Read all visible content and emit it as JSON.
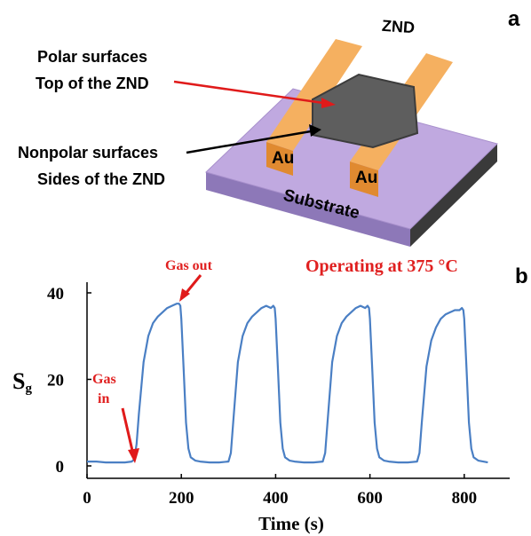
{
  "panel_a": {
    "letter": "a",
    "znd_label": "ZND",
    "polar_line1": "Polar surfaces",
    "polar_line2": "Top of the ZND",
    "nonpolar_line1": "Nonpolar surfaces",
    "nonpolar_line2": "Sides of the ZND",
    "electrode_left": "Au",
    "electrode_right": "Au",
    "substrate": "Substrate",
    "colors": {
      "substrate_top": "#b9a2dc",
      "substrate_side": "#7d67a8",
      "gold": "#f0a14a",
      "gold_dark": "#c97b28",
      "znd": "#5a5a5a",
      "arrow_red": "#e01a1a"
    }
  },
  "panel_b": {
    "letter": "b",
    "annotation_operating": "Operating at 375 °C",
    "annotation_gas_out": "Gas out",
    "annotation_gas_in_1": "Gas",
    "annotation_gas_in_2": "in",
    "ylabel_main": "S",
    "ylabel_sub": "g",
    "xlabel": "Time (s)",
    "xticks": [
      "0",
      "200",
      "400",
      "600",
      "800"
    ],
    "yticks": [
      "0",
      "20",
      "40"
    ],
    "line_color": "#4a7fc4"
  },
  "chart_data": {
    "type": "line",
    "xlabel": "Time (s)",
    "ylabel": "Sg",
    "xlim": [
      0,
      870
    ],
    "ylim": [
      0,
      40
    ],
    "series": [
      {
        "x": [
          0,
          20,
          40,
          60,
          80,
          95,
          100,
          105,
          110,
          120,
          130,
          140,
          150,
          160,
          170,
          180,
          190,
          195,
          198,
          200,
          205,
          210,
          215,
          220,
          230,
          240,
          260,
          280,
          300,
          305,
          310,
          320,
          330,
          340,
          350,
          360,
          370,
          380,
          390,
          395,
          398,
          400,
          405,
          410,
          415,
          420,
          430,
          440,
          460,
          480,
          500,
          505,
          510,
          520,
          530,
          540,
          550,
          560,
          570,
          580,
          590,
          595,
          598,
          600,
          605,
          610,
          615,
          620,
          630,
          640,
          660,
          680,
          700,
          705,
          710,
          720,
          730,
          740,
          750,
          760,
          770,
          780,
          790,
          795,
          798,
          800,
          805,
          810,
          815,
          820,
          830,
          840,
          850
        ],
        "y": [
          1,
          1,
          0.8,
          0.8,
          0.8,
          1,
          1.5,
          5,
          12,
          24,
          30,
          33,
          34.5,
          35.5,
          36.5,
          37,
          37.5,
          37.5,
          37,
          34,
          22,
          10,
          4,
          2,
          1.2,
          1,
          0.8,
          0.8,
          1,
          3,
          10,
          24,
          30,
          33,
          34.5,
          35.5,
          36.5,
          37,
          36.5,
          37,
          36.5,
          34,
          22,
          10,
          4,
          2,
          1.2,
          1,
          0.8,
          0.8,
          1,
          3,
          10,
          24,
          30,
          33,
          34.5,
          35.5,
          36.5,
          37,
          36.5,
          37,
          36.5,
          34,
          22,
          10,
          4,
          2,
          1.2,
          1,
          0.8,
          0.8,
          1,
          3,
          10,
          23,
          29,
          32,
          34,
          35,
          35.5,
          36,
          36,
          36.5,
          36,
          34,
          22,
          10,
          4,
          2,
          1.2,
          1,
          0.8
        ]
      }
    ]
  }
}
